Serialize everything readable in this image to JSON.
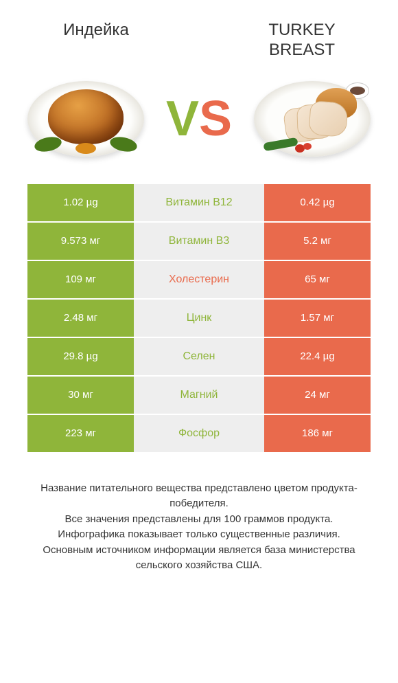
{
  "colors": {
    "left": "#8fb53a",
    "right": "#e96a4c",
    "mid_bg": "#eeeeee",
    "page_bg": "#ffffff",
    "text": "#333333"
  },
  "header": {
    "left_title": "Индейка",
    "right_title_line1": "TURKEY",
    "right_title_line2": "BREAST"
  },
  "vs": {
    "v": "V",
    "s": "S"
  },
  "rows": [
    {
      "left": "1.02 µg",
      "label": "Витамин B12",
      "right": "0.42 µg",
      "winner": "left"
    },
    {
      "left": "9.573 мг",
      "label": "Витамин B3",
      "right": "5.2 мг",
      "winner": "left"
    },
    {
      "left": "109 мг",
      "label": "Холестерин",
      "right": "65 мг",
      "winner": "right"
    },
    {
      "left": "2.48 мг",
      "label": "Цинк",
      "right": "1.57 мг",
      "winner": "left"
    },
    {
      "left": "29.8 µg",
      "label": "Селен",
      "right": "22.4 µg",
      "winner": "left"
    },
    {
      "left": "30 мг",
      "label": "Магний",
      "right": "24 мг",
      "winner": "left"
    },
    {
      "left": "223 мг",
      "label": "Фосфор",
      "right": "186 мг",
      "winner": "left"
    }
  ],
  "footer": {
    "line1": "Название питательного вещества представлено цветом продукта-победителя.",
    "line2": "Все значения представлены для 100 граммов продукта.",
    "line3": "Инфографика показывает только существенные различия.",
    "line4": "Основным источником информации является база министерства сельского хозяйства США."
  }
}
